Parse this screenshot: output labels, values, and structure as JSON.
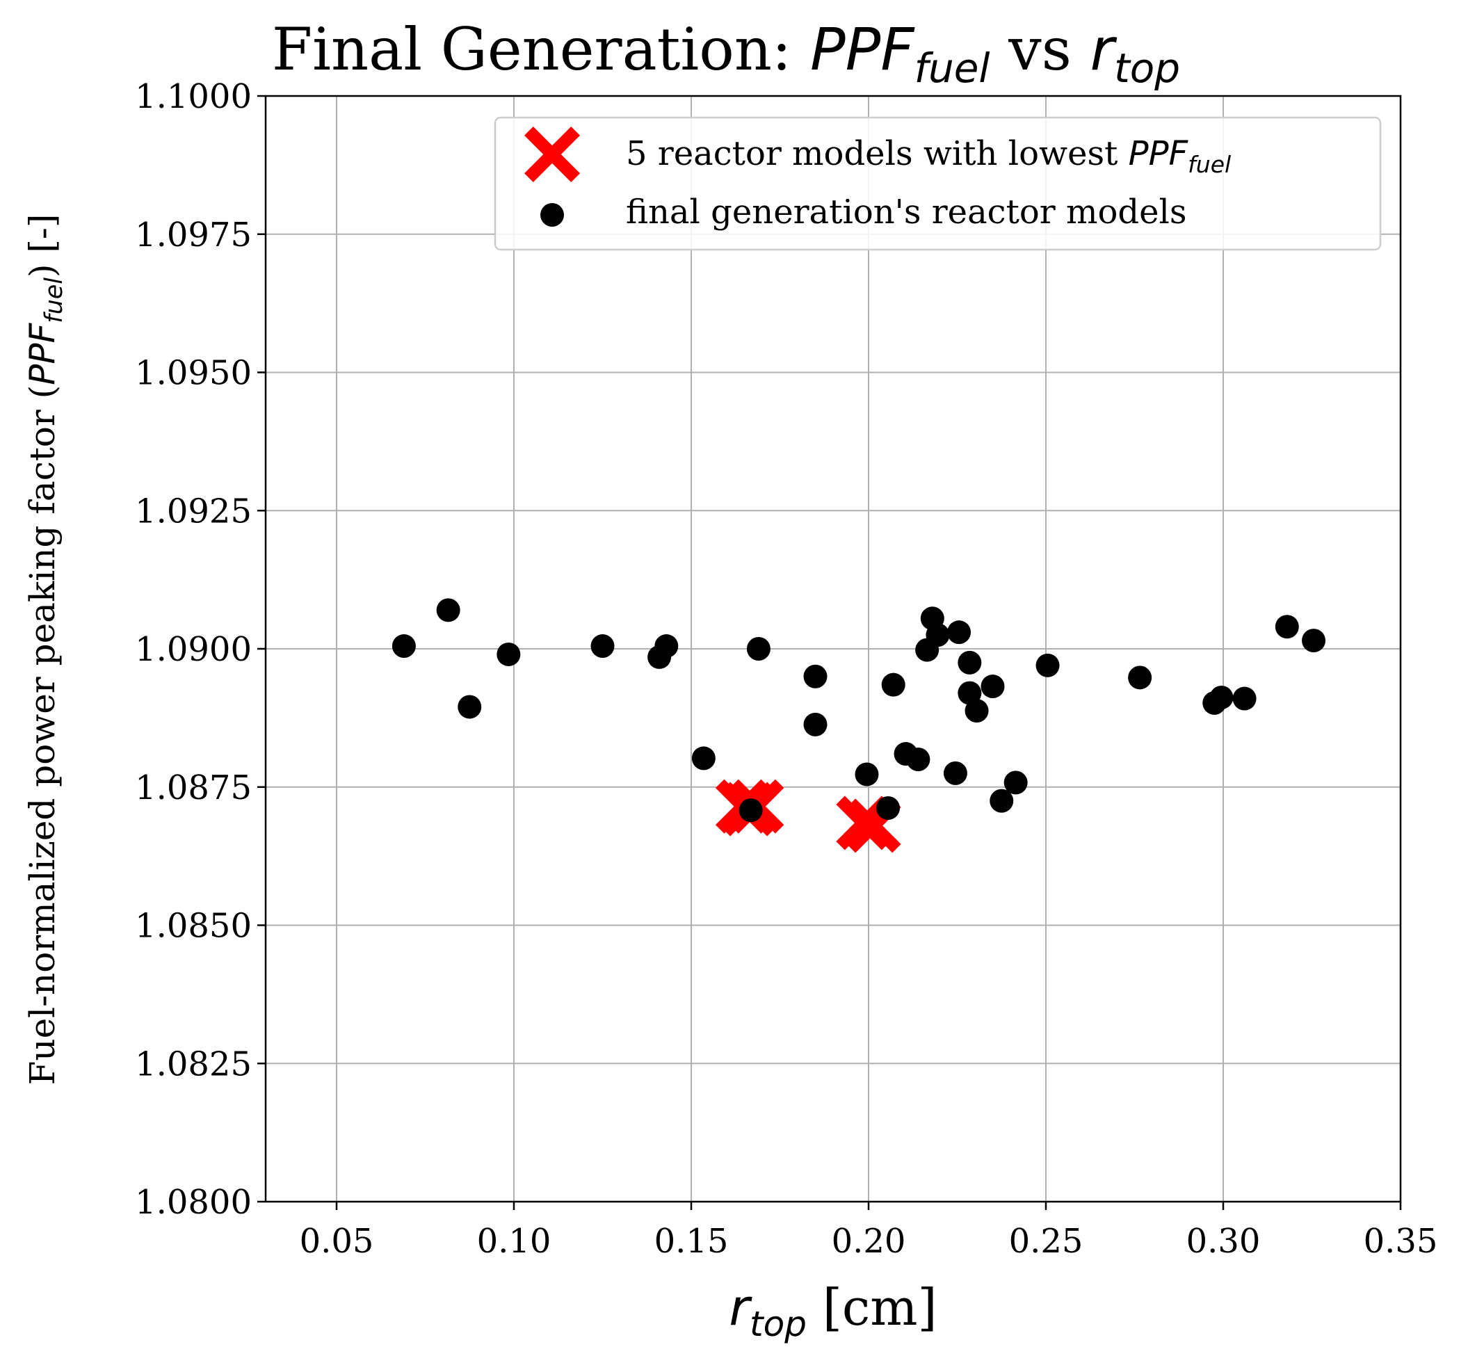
{
  "chart_data": {
    "type": "scatter",
    "title": {
      "prefix": "Final Generation: ",
      "var1_base": "PPF",
      "var1_sub": "fuel",
      "middle": " vs ",
      "var2_base": "r",
      "var2_sub": "top"
    },
    "xlabel": {
      "base": "r",
      "sub": "top",
      "unit": " [cm]"
    },
    "ylabel": {
      "prefix": "Fuel-normalized power peaking factor (",
      "base": "PPF",
      "sub": "fuel",
      "suffix": ") [-]"
    },
    "xlim": [
      0.03,
      0.35
    ],
    "ylim": [
      1.08,
      1.1
    ],
    "xticks": [
      "0.05",
      "0.10",
      "0.15",
      "0.20",
      "0.25",
      "0.30",
      "0.35"
    ],
    "yticks": [
      "1.0800",
      "1.0825",
      "1.0850",
      "1.0875",
      "1.0900",
      "1.0925",
      "1.0950",
      "1.0975",
      "1.1000"
    ],
    "grid": true,
    "legend_position": "top-right",
    "series": [
      {
        "name": "5 reactor models with lowest ",
        "name_var_base": "PPF",
        "name_var_sub": "fuel",
        "marker": "X",
        "color": "#ff0000",
        "points": [
          [
            0.1645,
            1.08715
          ],
          [
            0.1685,
            1.08715
          ],
          [
            0.1662,
            1.0871
          ],
          [
            0.1985,
            1.08685
          ],
          [
            0.2015,
            1.0868
          ]
        ]
      },
      {
        "name": "final generation's reactor models",
        "marker": "circle",
        "color": "#000000",
        "points": [
          [
            0.069,
            1.09005
          ],
          [
            0.0815,
            1.0907
          ],
          [
            0.0875,
            1.08895
          ],
          [
            0.0985,
            1.0899
          ],
          [
            0.125,
            1.09005
          ],
          [
            0.141,
            1.08985
          ],
          [
            0.143,
            1.09005
          ],
          [
            0.1535,
            1.08802
          ],
          [
            0.1668,
            1.08708
          ],
          [
            0.169,
            1.09
          ],
          [
            0.185,
            1.0895
          ],
          [
            0.185,
            1.08863
          ],
          [
            0.1995,
            1.08773
          ],
          [
            0.2055,
            1.08712
          ],
          [
            0.207,
            1.08935
          ],
          [
            0.2105,
            1.0881
          ],
          [
            0.214,
            1.088
          ],
          [
            0.2165,
            1.08998
          ],
          [
            0.218,
            1.09055
          ],
          [
            0.2195,
            1.09025
          ],
          [
            0.2245,
            1.08775
          ],
          [
            0.2255,
            1.0903
          ],
          [
            0.2285,
            1.08975
          ],
          [
            0.2285,
            1.0892
          ],
          [
            0.2305,
            1.08888
          ],
          [
            0.235,
            1.08932
          ],
          [
            0.2375,
            1.08725
          ],
          [
            0.2415,
            1.08758
          ],
          [
            0.2505,
            1.0897
          ],
          [
            0.2765,
            1.08948
          ],
          [
            0.2975,
            1.08902
          ],
          [
            0.2995,
            1.08912
          ],
          [
            0.306,
            1.0891
          ],
          [
            0.318,
            1.0904
          ],
          [
            0.3255,
            1.09015
          ]
        ]
      }
    ]
  }
}
